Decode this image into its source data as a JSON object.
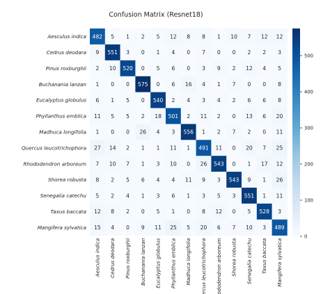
{
  "chart_data": {
    "type": "heatmap",
    "title": "Confusion Matrix (Resnet18)",
    "row_labels": [
      "Aesculus indica",
      "Cedrus deodara",
      "Pinus roxburghii",
      "Buchanania lanzan",
      "Eucalyptus globulus",
      "Phyllanthus emblica",
      "Madhuca longifolia",
      "Quercus leucotrichophora",
      "Rhododendron arboreum",
      "Shorea robusta",
      "Senegalia catechu",
      "Taxus baccata",
      "Mangifera sylvatica"
    ],
    "col_labels": [
      "Aesculus indica",
      "Cedrus deodara",
      "Pinus roxburghii",
      "Buchanania lanzan",
      "Eucalyptus globulus",
      "Phyllanthus emblica",
      "Madhuca longifolia",
      "Quercus leucotrichophora",
      "Rhododendron arboreum",
      "Shorea robusta",
      "Senegalia catechu",
      "Taxus baccata",
      "Mangifera sylvatica"
    ],
    "values": [
      [
        482,
        5,
        1,
        2,
        5,
        12,
        8,
        8,
        1,
        10,
        7,
        12,
        12
      ],
      [
        9,
        551,
        3,
        0,
        1,
        4,
        0,
        7,
        0,
        0,
        2,
        2,
        3
      ],
      [
        2,
        10,
        520,
        0,
        5,
        6,
        0,
        3,
        9,
        2,
        12,
        4,
        5
      ],
      [
        1,
        0,
        0,
        575,
        0,
        6,
        16,
        4,
        1,
        7,
        0,
        0,
        8
      ],
      [
        6,
        1,
        5,
        0,
        540,
        2,
        4,
        3,
        4,
        2,
        6,
        6,
        8
      ],
      [
        11,
        5,
        5,
        2,
        18,
        501,
        2,
        11,
        2,
        0,
        13,
        6,
        20
      ],
      [
        1,
        0,
        0,
        26,
        4,
        3,
        556,
        1,
        2,
        7,
        2,
        0,
        11
      ],
      [
        27,
        14,
        2,
        1,
        1,
        11,
        1,
        491,
        11,
        0,
        20,
        7,
        25
      ],
      [
        7,
        10,
        7,
        1,
        3,
        10,
        0,
        26,
        543,
        0,
        1,
        17,
        12
      ],
      [
        8,
        2,
        5,
        6,
        4,
        4,
        11,
        9,
        3,
        543,
        9,
        1,
        26
      ],
      [
        5,
        2,
        4,
        1,
        3,
        6,
        1,
        3,
        5,
        3,
        551,
        1,
        11
      ],
      [
        12,
        8,
        2,
        0,
        5,
        1,
        0,
        8,
        12,
        0,
        5,
        528,
        3
      ],
      [
        15,
        4,
        0,
        9,
        11,
        25,
        5,
        20,
        6,
        7,
        10,
        3,
        489
      ]
    ],
    "colorbar": {
      "min": 0,
      "max": 575,
      "ticks": [
        0,
        100,
        200,
        300,
        400,
        500
      ]
    },
    "colors": {
      "low": "#f7fbff",
      "high": "#08306b"
    }
  }
}
